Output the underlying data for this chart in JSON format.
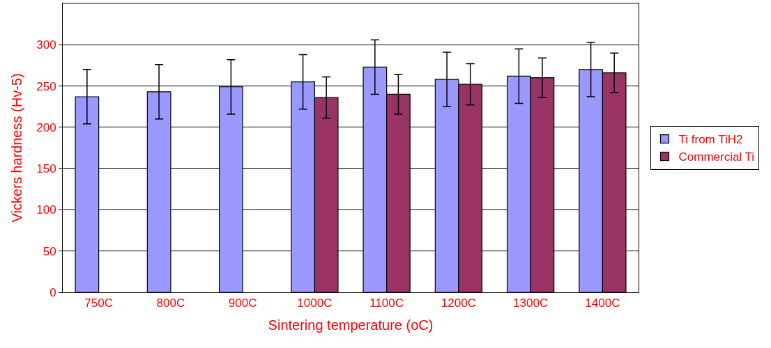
{
  "chart_data": {
    "type": "bar",
    "xlabel": "Sintering temperature (oC)",
    "ylabel": "Vickers hardness (Hv-5)",
    "categories": [
      "750C",
      "800C",
      "900C",
      "1000C",
      "1100C",
      "1200C",
      "1300C",
      "1400C"
    ],
    "series": [
      {
        "name": "Ti from TiH2",
        "color": "#9999ff",
        "values": [
          237,
          243,
          249,
          255,
          273,
          258,
          262,
          270
        ],
        "errors": [
          33,
          33,
          33,
          33,
          33,
          33,
          33,
          33
        ]
      },
      {
        "name": "Commercial Ti",
        "color": "#993366",
        "values": [
          null,
          null,
          null,
          236,
          240,
          252,
          260,
          266
        ],
        "errors": [
          null,
          null,
          null,
          25,
          24,
          25,
          24,
          24
        ]
      }
    ],
    "ylim": [
      0,
      350
    ],
    "yticks": [
      0,
      50,
      100,
      150,
      200,
      250,
      300
    ],
    "grid": "y",
    "legend": "right"
  }
}
